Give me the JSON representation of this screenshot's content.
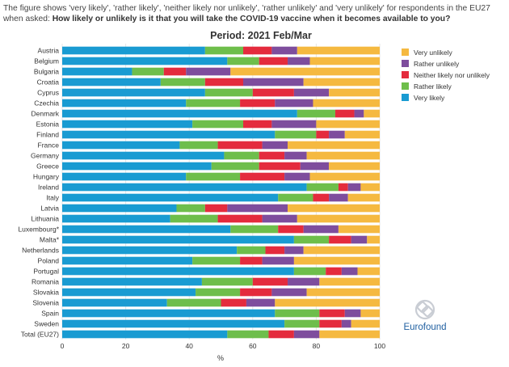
{
  "intro": {
    "plain": "The figure shows 'very likely', 'rather likely', 'neither likely nor unlikely', 'rather unlikely' and 'very unlikely' for respondents in the EU27 when asked: ",
    "question": "How likely or unlikely is it that you will take the COVID-19 vaccine when it becomes available to you?"
  },
  "logo": {
    "text": "Eurofound"
  },
  "colors": {
    "very_likely": "#199bd2",
    "rather_likely": "#6ebe4b",
    "neither": "#e42b3d",
    "rather_unlikely": "#7e4d9d",
    "very_unlikely": "#f5b940"
  },
  "chart_data": {
    "type": "bar",
    "orientation": "horizontal",
    "stacked": true,
    "title": "Period: 2021 Feb/Mar",
    "xlabel": "%",
    "ylabel": "",
    "xlim": [
      0,
      100
    ],
    "xticks": [
      0,
      20,
      40,
      60,
      80,
      100
    ],
    "categories": [
      "Austria",
      "Belgium",
      "Bulgaria",
      "Croatia",
      "Cyprus",
      "Czechia",
      "Denmark",
      "Estonia",
      "Finland",
      "France",
      "Germany",
      "Greece",
      "Hungary",
      "Ireland",
      "Italy",
      "Latvia",
      "Lithuania",
      "Luxembourg*",
      "Malta*",
      "Netherlands",
      "Poland",
      "Portugal",
      "Romania",
      "Slovakia",
      "Slovenia",
      "Spain",
      "Sweden",
      "Total (EU27)"
    ],
    "series": [
      {
        "name": "Very likely",
        "key": "very_likely",
        "values": [
          45,
          52,
          22,
          31,
          45,
          39,
          74,
          41,
          67,
          37,
          51,
          47,
          39,
          77,
          68,
          36,
          34,
          53,
          73,
          55,
          41,
          73,
          44,
          42,
          33,
          67,
          70,
          52
        ]
      },
      {
        "name": "Rather likely",
        "key": "rather_likely",
        "values": [
          12,
          10,
          10,
          14,
          15,
          17,
          12,
          16,
          13,
          12,
          11,
          15,
          17,
          10,
          11,
          9,
          15,
          15,
          11,
          9,
          15,
          10,
          16,
          14,
          17,
          14,
          11,
          13
        ]
      },
      {
        "name": "Neither likely nor unlikely",
        "key": "neither",
        "values": [
          9,
          9,
          7,
          12,
          13,
          11,
          6,
          9,
          4,
          14,
          8,
          13,
          14,
          3,
          5,
          7,
          14,
          8,
          7,
          6,
          7,
          5,
          11,
          10,
          8,
          8,
          7,
          8
        ]
      },
      {
        "name": "Rather unlikely",
        "key": "rather_unlikely",
        "values": [
          8,
          7,
          14,
          19,
          11,
          12,
          3,
          14,
          5,
          8,
          7,
          9,
          8,
          4,
          6,
          19,
          11,
          11,
          5,
          6,
          10,
          5,
          10,
          11,
          9,
          5,
          3,
          8
        ]
      },
      {
        "name": "Very unlikely",
        "key": "very_unlikely",
        "values": [
          26,
          22,
          47,
          24,
          16,
          21,
          5,
          20,
          11,
          29,
          23,
          16,
          22,
          6,
          10,
          29,
          26,
          13,
          4,
          24,
          27,
          7,
          19,
          23,
          33,
          6,
          9,
          19
        ]
      }
    ],
    "legend": {
      "placement": "right",
      "order": [
        "Very unlikely",
        "Rather unlikely",
        "Neither likely nor unlikely",
        "Rather likely",
        "Very likely"
      ]
    }
  }
}
